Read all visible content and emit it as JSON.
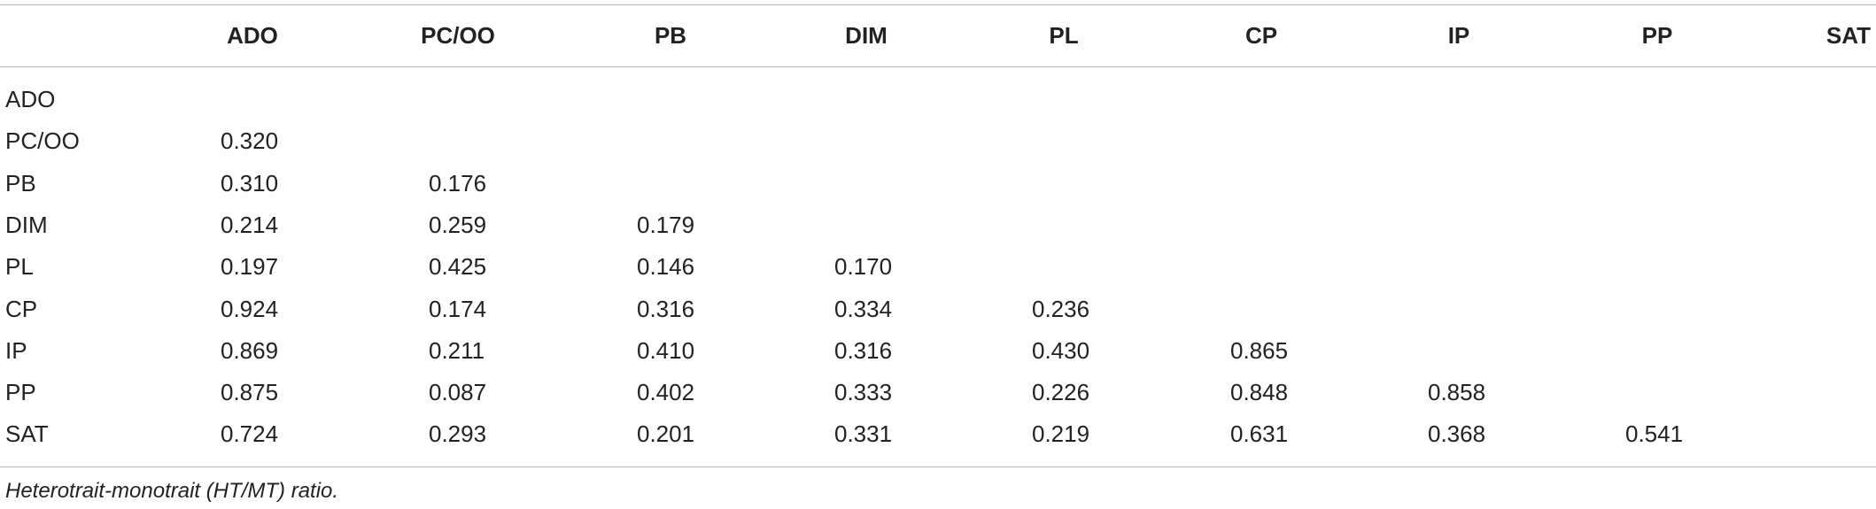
{
  "table": {
    "columns": [
      "ADO",
      "PC/OO",
      "PB",
      "DIM",
      "PL",
      "CP",
      "IP",
      "PP",
      "SAT"
    ],
    "rows": [
      {
        "label": "ADO",
        "values": []
      },
      {
        "label": "PC/OO",
        "values": [
          "0.320"
        ]
      },
      {
        "label": "PB",
        "values": [
          "0.310",
          "0.176"
        ]
      },
      {
        "label": "DIM",
        "values": [
          "0.214",
          "0.259",
          "0.179"
        ]
      },
      {
        "label": "PL",
        "values": [
          "0.197",
          "0.425",
          "0.146",
          "0.170"
        ]
      },
      {
        "label": "CP",
        "values": [
          "0.924",
          "0.174",
          "0.316",
          "0.334",
          "0.236"
        ]
      },
      {
        "label": "IP",
        "values": [
          "0.869",
          "0.211",
          "0.410",
          "0.316",
          "0.430",
          "0.865"
        ]
      },
      {
        "label": "PP",
        "values": [
          "0.875",
          "0.087",
          "0.402",
          "0.333",
          "0.226",
          "0.848",
          "0.858"
        ]
      },
      {
        "label": "SAT",
        "values": [
          "0.724",
          "0.293",
          "0.201",
          "0.331",
          "0.219",
          "0.631",
          "0.368",
          "0.541"
        ]
      }
    ],
    "footnote": "Heterotrait-monotrait (HT/MT) ratio."
  }
}
